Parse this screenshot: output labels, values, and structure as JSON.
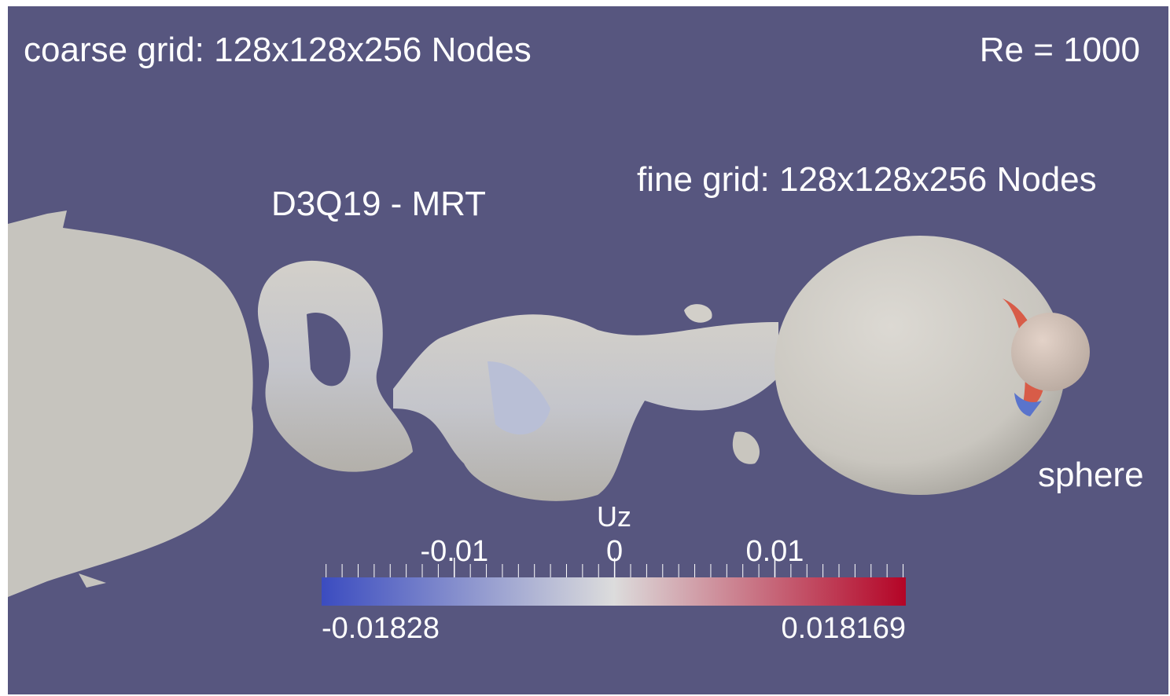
{
  "annotations": {
    "coarse_grid": "coarse grid: 128x128x256 Nodes",
    "reynolds": "Re = 1000",
    "fine_grid": "fine grid: 128x128x256 Nodes",
    "scheme": "D3Q19 - MRT",
    "sphere": "sphere"
  },
  "colorbar": {
    "title": "Uz",
    "range": [
      -0.01828,
      0.018169
    ],
    "ticks": [
      -0.01,
      0,
      0.01
    ],
    "minor_ticks": [
      -0.018,
      -0.017,
      -0.016,
      -0.015,
      -0.014,
      -0.013,
      -0.012,
      -0.011,
      -0.01,
      -0.009,
      -0.008,
      -0.007,
      -0.006,
      -0.005,
      -0.004,
      -0.003,
      -0.002,
      -0.001,
      0,
      0.001,
      0.002,
      0.003,
      0.004,
      0.005,
      0.006,
      0.007,
      0.008,
      0.009,
      0.01,
      0.011,
      0.012,
      0.013,
      0.014,
      0.015,
      0.016,
      0.017,
      0.018
    ],
    "colormap": [
      "#3b4cc0",
      "#dcdcdc",
      "#b40426"
    ]
  }
}
